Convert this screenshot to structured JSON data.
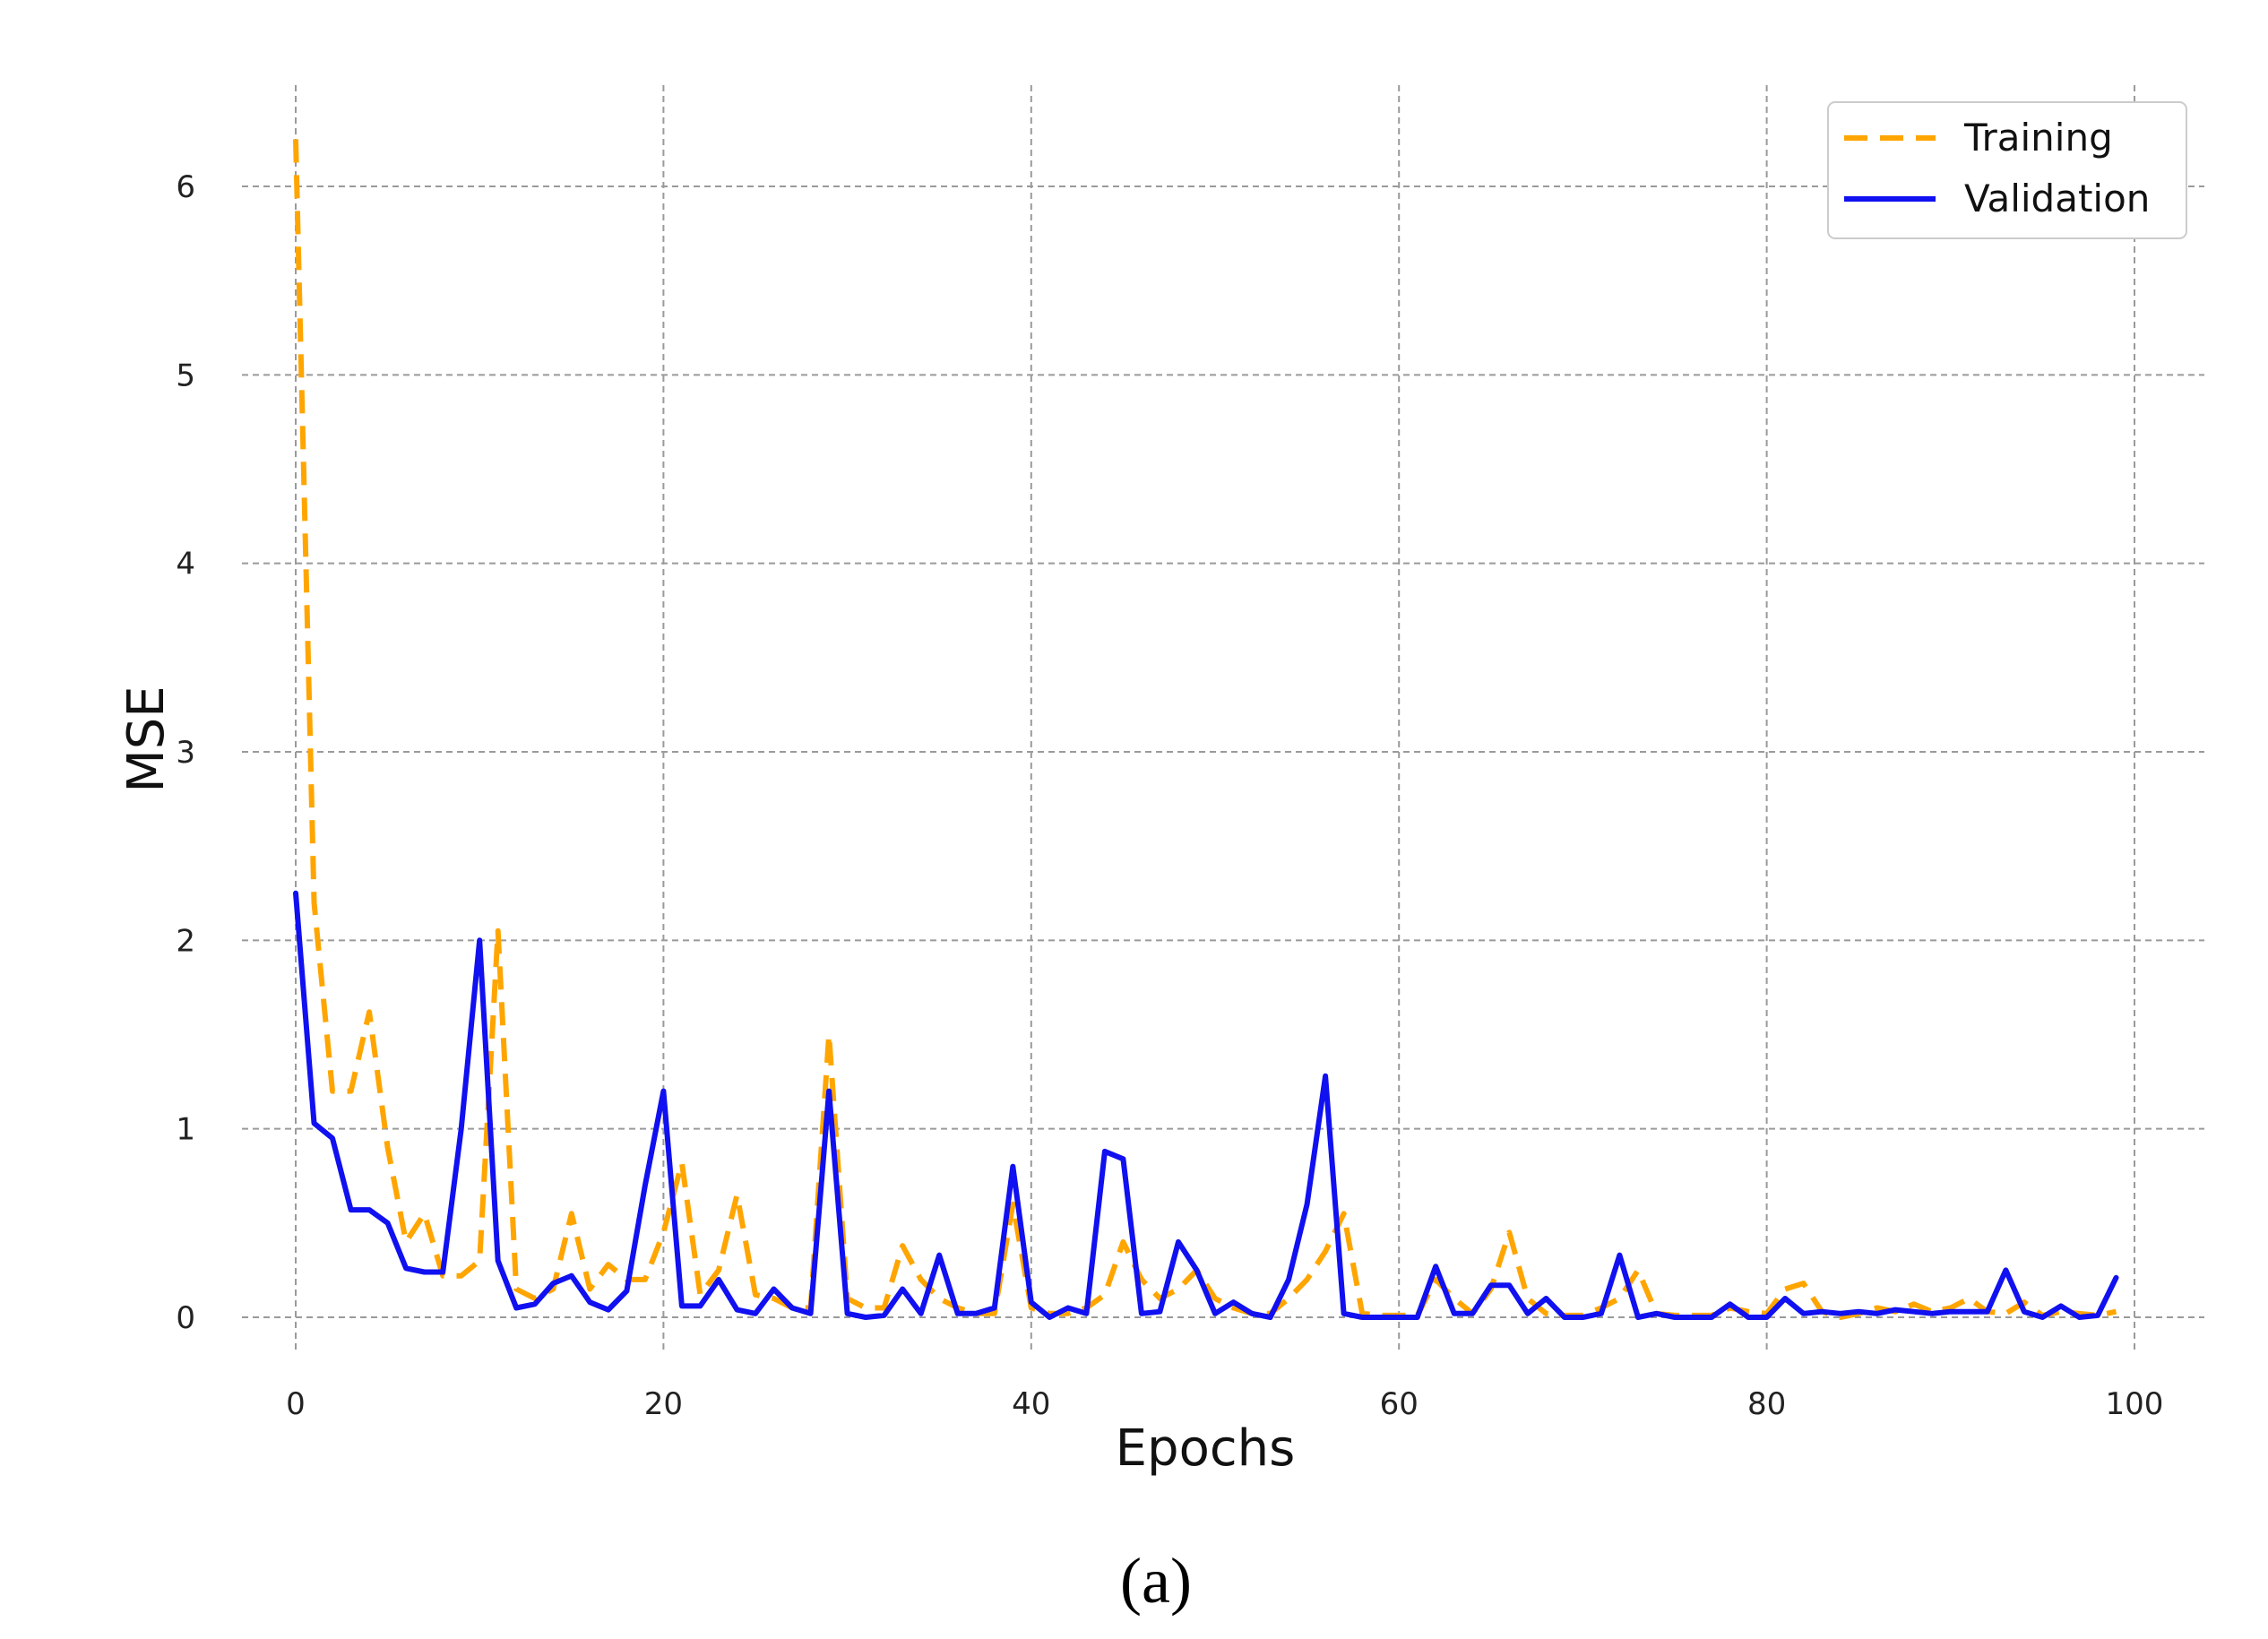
{
  "chart_data": {
    "type": "line",
    "xlabel": "Epochs",
    "ylabel": "MSE",
    "xlim": [
      -5,
      103
    ],
    "ylim": [
      -0.2,
      6.6
    ],
    "xticks": [
      0,
      20,
      40,
      60,
      80,
      100
    ],
    "yticks": [
      0,
      1,
      2,
      3,
      4,
      5,
      6
    ],
    "grid": true,
    "legend_position": "top-right",
    "subcaption": "(a)",
    "series": [
      {
        "name": "Training",
        "color": "#FFA500",
        "style": "dashed",
        "values": [
          6.25,
          2.2,
          1.2,
          1.2,
          1.62,
          0.9,
          0.4,
          0.55,
          0.22,
          0.22,
          0.3,
          2.05,
          0.15,
          0.1,
          0.15,
          0.55,
          0.15,
          0.28,
          0.2,
          0.2,
          0.45,
          0.82,
          0.12,
          0.25,
          0.65,
          0.12,
          0.1,
          0.05,
          0.05,
          1.5,
          0.1,
          0.05,
          0.05,
          0.38,
          0.2,
          0.1,
          0.05,
          0.02,
          0.02,
          0.6,
          0.05,
          0.02,
          0.02,
          0.05,
          0.12,
          0.4,
          0.2,
          0.1,
          0.15,
          0.25,
          0.1,
          0.05,
          0.02,
          0.02,
          0.1,
          0.2,
          0.35,
          0.55,
          0.02,
          0.01,
          0.01,
          0.01,
          0.2,
          0.1,
          0.02,
          0.15,
          0.45,
          0.1,
          0.02,
          0.01,
          0.01,
          0.05,
          0.1,
          0.25,
          0.02,
          0.01,
          0.01,
          0.01,
          0.05,
          0.03,
          0.02,
          0.15,
          0.18,
          0.03,
          0.0,
          0.02,
          0.05,
          0.03,
          0.07,
          0.03,
          0.05,
          0.1,
          0.03,
          0.02,
          0.08,
          0.01,
          0.03,
          0.02,
          0.01,
          0.03
        ]
      },
      {
        "name": "Validation",
        "color": "#1010F0",
        "style": "solid",
        "values": [
          2.25,
          1.03,
          0.95,
          0.57,
          0.57,
          0.5,
          0.26,
          0.24,
          0.24,
          1.0,
          2.0,
          0.3,
          0.05,
          0.07,
          0.18,
          0.22,
          0.08,
          0.04,
          0.14,
          0.7,
          1.2,
          0.06,
          0.06,
          0.2,
          0.04,
          0.02,
          0.15,
          0.05,
          0.02,
          1.2,
          0.02,
          0.0,
          0.01,
          0.15,
          0.02,
          0.33,
          0.02,
          0.02,
          0.05,
          0.8,
          0.08,
          0.0,
          0.05,
          0.02,
          0.88,
          0.84,
          0.02,
          0.03,
          0.4,
          0.25,
          0.02,
          0.08,
          0.02,
          0.0,
          0.2,
          0.6,
          1.28,
          0.02,
          0.0,
          0.0,
          0.0,
          0.0,
          0.27,
          0.02,
          0.02,
          0.17,
          0.17,
          0.02,
          0.1,
          0.0,
          0.0,
          0.02,
          0.33,
          0.0,
          0.02,
          0.0,
          0.0,
          0.0,
          0.07,
          0.0,
          0.0,
          0.1,
          0.02,
          0.03,
          0.02,
          0.03,
          0.02,
          0.04,
          0.03,
          0.02,
          0.03,
          0.03,
          0.03,
          0.25,
          0.03,
          0.0,
          0.06,
          0.0,
          0.01,
          0.21
        ]
      }
    ]
  }
}
